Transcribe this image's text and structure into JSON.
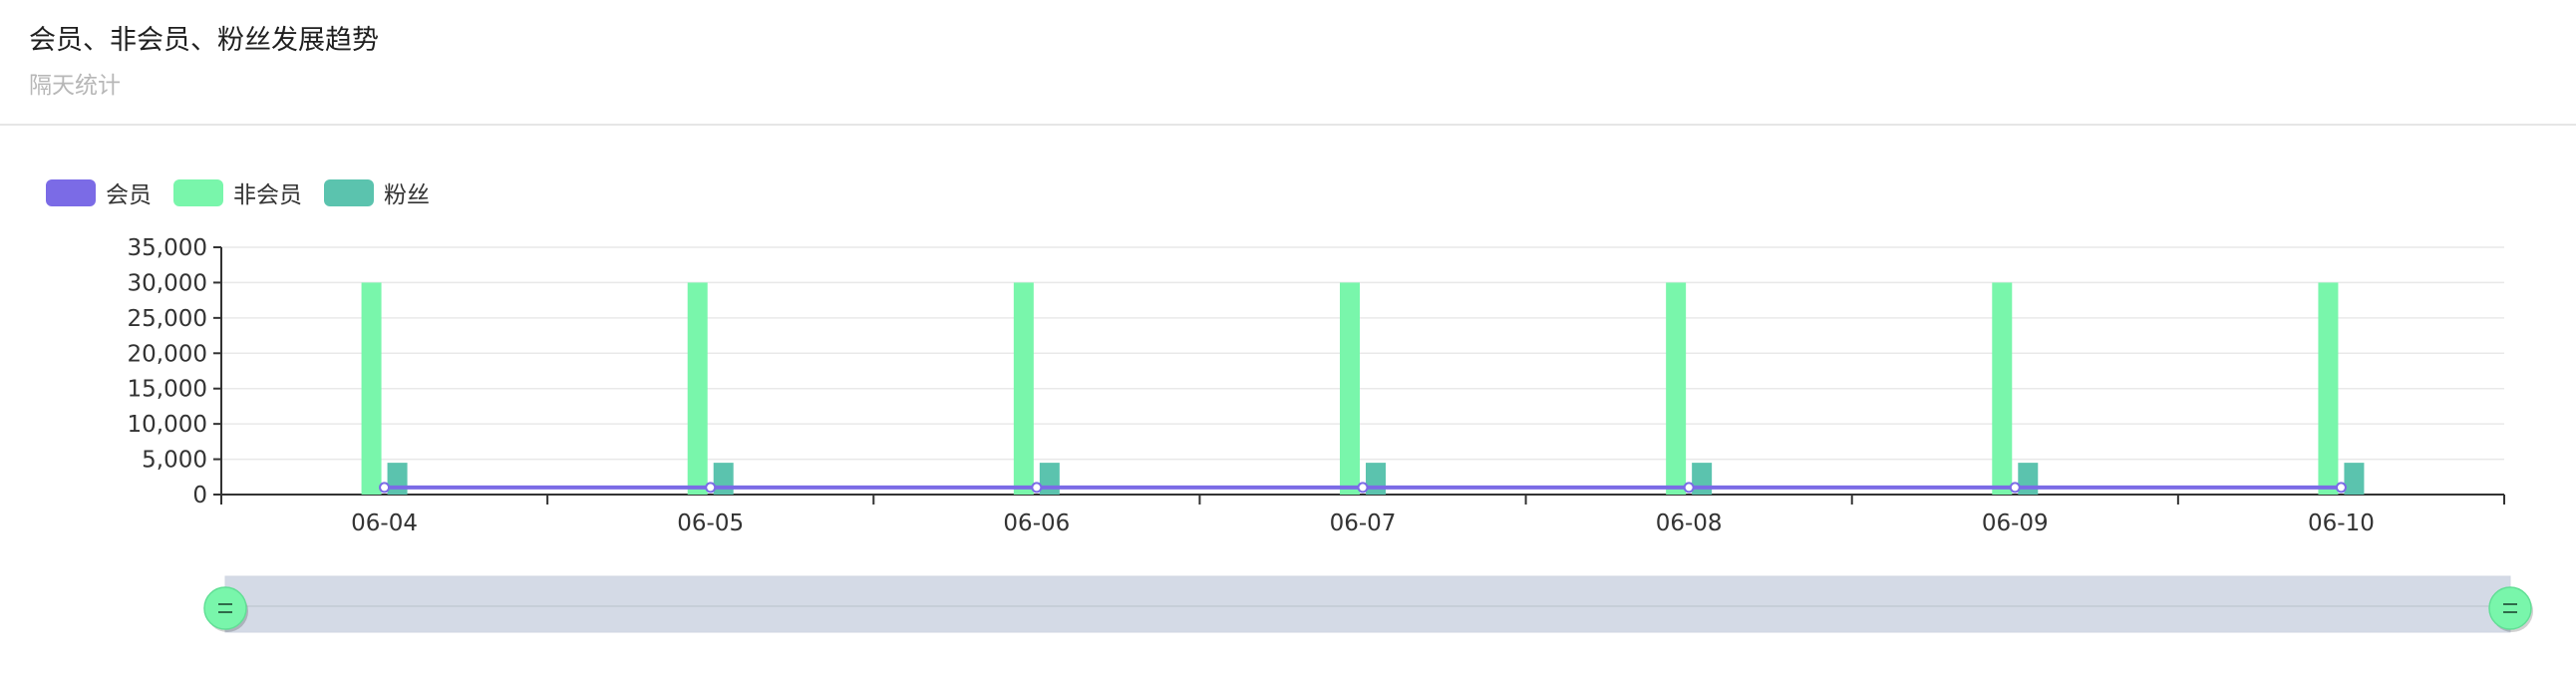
{
  "header": {
    "title": "会员、非会员、粉丝发展趋势",
    "subtitle": "隔天统计"
  },
  "legend": {
    "items": [
      {
        "label": "会员",
        "color": "#7b6be6"
      },
      {
        "label": "非会员",
        "color": "#79f6ab"
      },
      {
        "label": "粉丝",
        "color": "#5bc3ae"
      }
    ]
  },
  "chart_data": {
    "type": "bar",
    "categories": [
      "06-04",
      "06-05",
      "06-06",
      "06-07",
      "06-08",
      "06-09",
      "06-10"
    ],
    "series": [
      {
        "name": "会员",
        "type": "line",
        "color": "#7b6be6",
        "values": [
          1000,
          1000,
          1000,
          1000,
          1000,
          1000,
          1000
        ]
      },
      {
        "name": "非会员",
        "type": "bar",
        "color": "#79f6ab",
        "values": [
          30000,
          30000,
          30000,
          30000,
          30000,
          30000,
          30000
        ]
      },
      {
        "name": "粉丝",
        "type": "bar",
        "color": "#5bc3ae",
        "values": [
          4500,
          4500,
          4500,
          4500,
          4500,
          4500,
          4500
        ]
      }
    ],
    "yticks": [
      "0",
      "5,000",
      "10,000",
      "15,000",
      "20,000",
      "25,000",
      "30,000",
      "35,000"
    ],
    "ylim": [
      0,
      35000
    ],
    "grid": true,
    "legend_position": "top-left",
    "datazoom_range": [
      0,
      100
    ]
  }
}
